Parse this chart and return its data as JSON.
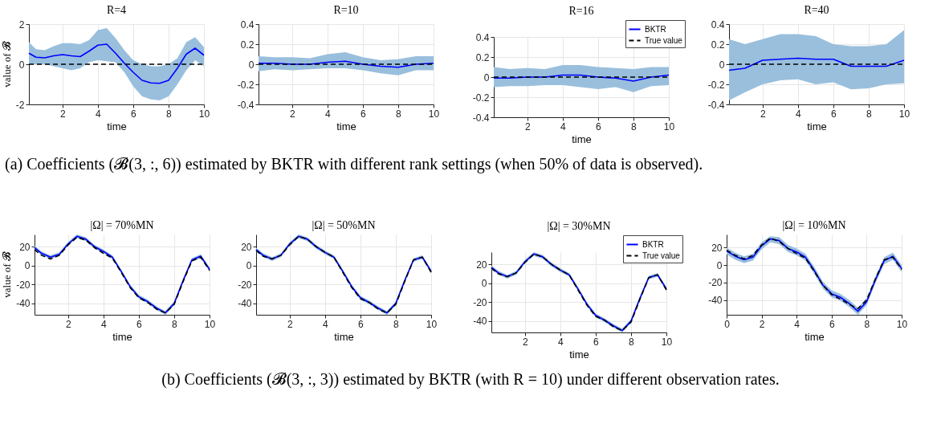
{
  "chart_data": [
    {
      "type": "line",
      "title": "R=4",
      "xlabel": "time",
      "ylabel": "value of 𝓑",
      "xlim": [
        0.1,
        10
      ],
      "xticks": [
        2,
        4,
        6,
        8,
        10
      ],
      "ylim": [
        -2,
        2
      ],
      "yticks": [
        -2,
        0,
        2
      ],
      "grid": true,
      "annotations": [
        "(a) Coefficients (𝓑(3, :, 6)) estimated by BKTR with different rank settings (when 50% of data is observed)."
      ],
      "series": [
        {
          "color": "#0000ff",
          "line_style": "solid",
          "x": [
            0.1,
            0.5,
            1,
            1.5,
            2,
            2.5,
            3,
            3.5,
            4,
            4.5,
            5,
            5.5,
            6,
            6.5,
            7,
            7.5,
            8,
            8.5,
            9,
            9.5,
            10
          ],
          "values": [
            0.55,
            0.35,
            0.32,
            0.42,
            0.48,
            0.42,
            0.38,
            0.65,
            0.95,
            1.0,
            0.55,
            0.05,
            -0.4,
            -0.8,
            -0.93,
            -0.95,
            -0.8,
            -0.2,
            0.5,
            0.8,
            0.45
          ],
          "lower": [
            0.0,
            0.0,
            0.0,
            -0.1,
            -0.2,
            -0.3,
            -0.2,
            0.1,
            0.2,
            0.15,
            0.1,
            -0.4,
            -1.1,
            -1.6,
            -1.75,
            -1.8,
            -1.6,
            -1.0,
            -0.3,
            0.2,
            -0.1
          ],
          "upper": [
            1.1,
            0.75,
            0.7,
            0.9,
            1.05,
            1.05,
            1.0,
            1.2,
            1.7,
            1.8,
            1.3,
            0.7,
            0.2,
            0.0,
            -0.1,
            -0.1,
            0.0,
            0.3,
            1.1,
            1.35,
            0.85
          ]
        },
        {
          "color": "#000000",
          "line_style": "dashed",
          "x": [
            0.1,
            10
          ],
          "values": [
            0,
            0
          ]
        }
      ]
    },
    {
      "type": "line",
      "title": "R=10",
      "xlabel": "time",
      "xlim": [
        0.1,
        10
      ],
      "xticks": [
        2,
        4,
        6,
        8,
        10
      ],
      "ylim": [
        -0.4,
        0.4
      ],
      "yticks": [
        -0.4,
        -0.2,
        0,
        0.2,
        0.4
      ],
      "grid": true,
      "series": [
        {
          "color": "#0000ff",
          "line_style": "solid",
          "x": [
            0.1,
            1,
            2,
            3,
            4,
            5,
            6,
            7,
            8,
            9,
            10
          ],
          "values": [
            0.01,
            0.01,
            0.0,
            0.0,
            0.02,
            0.03,
            0.0,
            -0.02,
            -0.03,
            0.0,
            0.01
          ],
          "lower": [
            -0.07,
            -0.05,
            -0.06,
            -0.05,
            -0.04,
            -0.04,
            -0.06,
            -0.09,
            -0.11,
            -0.06,
            -0.06
          ],
          "upper": [
            0.08,
            0.07,
            0.07,
            0.06,
            0.1,
            0.12,
            0.07,
            0.04,
            0.05,
            0.08,
            0.08
          ]
        },
        {
          "color": "#000000",
          "line_style": "dashed",
          "x": [
            0.1,
            10
          ],
          "values": [
            0,
            0
          ]
        }
      ]
    },
    {
      "type": "line",
      "title": "R=16",
      "xlabel": "time",
      "xlim": [
        0.1,
        10
      ],
      "xticks": [
        2,
        4,
        6,
        8,
        10
      ],
      "ylim": [
        -0.4,
        0.4
      ],
      "yticks": [
        -0.4,
        -0.2,
        0,
        0.2,
        0.4
      ],
      "grid": true,
      "legend": "top right",
      "series": [
        {
          "name": "BKTR",
          "color": "#0000ff",
          "line_style": "solid",
          "x": [
            0.1,
            1,
            2,
            3,
            4,
            5,
            6,
            7,
            8,
            9,
            10
          ],
          "values": [
            -0.01,
            -0.01,
            0.0,
            0.0,
            0.02,
            0.02,
            0.0,
            -0.01,
            -0.04,
            0.0,
            0.02
          ],
          "lower": [
            -0.1,
            -0.09,
            -0.09,
            -0.08,
            -0.08,
            -0.1,
            -0.12,
            -0.1,
            -0.15,
            -0.09,
            -0.08
          ],
          "upper": [
            0.1,
            0.08,
            0.09,
            0.08,
            0.12,
            0.12,
            0.1,
            0.09,
            0.08,
            0.1,
            0.1
          ]
        },
        {
          "name": "True value",
          "color": "#000000",
          "line_style": "dashed",
          "x": [
            0.1,
            10
          ],
          "values": [
            0,
            0
          ]
        }
      ]
    },
    {
      "type": "line",
      "title": "R=40",
      "xlabel": "time",
      "xlim": [
        0.1,
        10
      ],
      "xticks": [
        2,
        4,
        6,
        8,
        10
      ],
      "ylim": [
        -0.4,
        0.4
      ],
      "yticks": [
        -0.4,
        -0.2,
        0,
        0.2,
        0.4
      ],
      "grid": true,
      "series": [
        {
          "color": "#0000ff",
          "line_style": "solid",
          "x": [
            0.1,
            1,
            2,
            3,
            4,
            5,
            6,
            7,
            8,
            9,
            10
          ],
          "values": [
            -0.06,
            -0.04,
            0.04,
            0.05,
            0.06,
            0.05,
            0.05,
            -0.02,
            -0.02,
            -0.02,
            0.04
          ],
          "lower": [
            -0.36,
            -0.28,
            -0.2,
            -0.16,
            -0.15,
            -0.2,
            -0.18,
            -0.25,
            -0.24,
            -0.2,
            -0.19
          ],
          "upper": [
            0.25,
            0.2,
            0.25,
            0.3,
            0.3,
            0.28,
            0.2,
            0.18,
            0.18,
            0.2,
            0.34
          ]
        },
        {
          "color": "#000000",
          "line_style": "dashed",
          "x": [
            0.1,
            10
          ],
          "values": [
            0,
            0
          ]
        }
      ]
    },
    {
      "type": "line",
      "title": "|Ω| = 70%MN",
      "xlabel": "time",
      "ylabel": "value of 𝓑",
      "xlim": [
        0.1,
        10
      ],
      "xticks": [
        2,
        4,
        6,
        8,
        10
      ],
      "ylim": [
        -52,
        33
      ],
      "yticks": [
        -40,
        -20,
        0,
        20
      ],
      "grid": true,
      "annotations": [
        "(b) Coefficients (𝓑(3, :, 3)) estimated by BKTR (with R = 10) under different observation rates."
      ],
      "series": [
        {
          "color": "#0000ff",
          "line_style": "solid",
          "x": [
            0.1,
            0.5,
            1,
            1.5,
            2,
            2.5,
            3,
            3.5,
            4,
            4.5,
            5,
            5.5,
            6,
            6.5,
            7,
            7.5,
            8,
            8.5,
            9,
            9.5,
            10
          ],
          "values": [
            19,
            13,
            9,
            12,
            23,
            31,
            28,
            20,
            15,
            9,
            -6,
            -22,
            -33,
            -38,
            -45,
            -50,
            -40,
            -16,
            6,
            10,
            -4
          ],
          "lower": [
            17,
            11,
            7,
            10,
            21,
            29,
            26,
            18,
            13,
            7,
            -8,
            -24,
            -35,
            -40,
            -47,
            -52,
            -42,
            -18,
            4,
            8,
            -6
          ],
          "upper": [
            21,
            15,
            11,
            14,
            25,
            33,
            30,
            22,
            17,
            11,
            -4,
            -20,
            -31,
            -36,
            -43,
            -48,
            -38,
            -14,
            8,
            12,
            -2
          ]
        },
        {
          "color": "#000000",
          "line_style": "dashed",
          "x": [
            0.1,
            0.5,
            1,
            1.5,
            2,
            2.5,
            3,
            3.5,
            4,
            4.5,
            5,
            5.5,
            6,
            6.5,
            7,
            7.5,
            8,
            8.5,
            9,
            9.5,
            10
          ],
          "values": [
            17,
            11,
            7,
            11,
            22,
            30,
            27,
            19,
            13,
            8,
            -7,
            -23,
            -34,
            -39,
            -46,
            -50,
            -41,
            -17,
            5,
            9,
            -5
          ]
        }
      ]
    },
    {
      "type": "line",
      "title": "|Ω| = 50%MN",
      "xlabel": "time",
      "xlim": [
        0.1,
        10
      ],
      "xticks": [
        2,
        4,
        6,
        8,
        10
      ],
      "ylim": [
        -52,
        33
      ],
      "yticks": [
        -40,
        -20,
        0,
        20
      ],
      "grid": true,
      "series": [
        {
          "color": "#0000ff",
          "line_style": "solid",
          "x": [
            0.1,
            0.5,
            1,
            1.5,
            2,
            2.5,
            3,
            3.5,
            4,
            4.5,
            5,
            5.5,
            6,
            6.5,
            7,
            7.5,
            8,
            8.5,
            9,
            9.5,
            10
          ],
          "values": [
            17,
            11,
            7,
            11,
            23,
            31,
            28,
            20,
            14,
            9,
            -6,
            -22,
            -34,
            -39,
            -45,
            -50,
            -40,
            -16,
            6,
            9,
            -6
          ],
          "lower": [
            15,
            9,
            5,
            9,
            21,
            29,
            26,
            18,
            12,
            7,
            -8,
            -24,
            -36,
            -41,
            -47,
            -52,
            -42,
            -18,
            4,
            7,
            -8
          ],
          "upper": [
            19,
            13,
            9,
            13,
            25,
            33,
            30,
            22,
            16,
            11,
            -4,
            -20,
            -32,
            -37,
            -43,
            -48,
            -38,
            -14,
            8,
            11,
            -4
          ]
        },
        {
          "color": "#000000",
          "line_style": "dashed",
          "x": [
            0.1,
            0.5,
            1,
            1.5,
            2,
            2.5,
            3,
            3.5,
            4,
            4.5,
            5,
            5.5,
            6,
            6.5,
            7,
            7.5,
            8,
            8.5,
            9,
            9.5,
            10
          ],
          "values": [
            16,
            10,
            7,
            11,
            22,
            31,
            28,
            20,
            14,
            9,
            -7,
            -23,
            -35,
            -39,
            -46,
            -50,
            -41,
            -17,
            6,
            9,
            -7
          ]
        }
      ]
    },
    {
      "type": "line",
      "title": "|Ω| = 30%MN",
      "xlabel": "time",
      "xlim": [
        0.1,
        10
      ],
      "xticks": [
        2,
        4,
        6,
        8,
        10
      ],
      "ylim": [
        -52,
        33
      ],
      "yticks": [
        -40,
        -20,
        0,
        20
      ],
      "grid": true,
      "legend": "top right",
      "series": [
        {
          "name": "BKTR",
          "color": "#0000ff",
          "line_style": "solid",
          "x": [
            0.1,
            0.5,
            1,
            1.5,
            2,
            2.5,
            3,
            3.5,
            4,
            4.5,
            5,
            5.5,
            6,
            6.5,
            7,
            7.5,
            8,
            8.5,
            9,
            9.5,
            10
          ],
          "values": [
            17,
            11,
            7,
            11,
            23,
            31,
            28,
            20,
            14,
            9,
            -6,
            -22,
            -34,
            -39,
            -45,
            -50,
            -40,
            -16,
            6,
            9,
            -6
          ],
          "lower": [
            15,
            9,
            5,
            9,
            21,
            29,
            26,
            18,
            12,
            7,
            -8,
            -24,
            -36,
            -41,
            -47,
            -52,
            -42,
            -18,
            4,
            7,
            -8
          ],
          "upper": [
            19,
            13,
            9,
            13,
            25,
            33,
            30,
            22,
            16,
            11,
            -4,
            -20,
            -32,
            -37,
            -43,
            -48,
            -38,
            -14,
            8,
            11,
            -4
          ]
        },
        {
          "name": "True value",
          "color": "#000000",
          "line_style": "dashed",
          "x": [
            0.1,
            0.5,
            1,
            1.5,
            2,
            2.5,
            3,
            3.5,
            4,
            4.5,
            5,
            5.5,
            6,
            6.5,
            7,
            7.5,
            8,
            8.5,
            9,
            9.5,
            10
          ],
          "values": [
            16,
            10,
            7,
            11,
            22,
            31,
            28,
            20,
            14,
            9,
            -7,
            -23,
            -35,
            -39,
            -46,
            -50,
            -41,
            -17,
            6,
            9,
            -7
          ]
        }
      ]
    },
    {
      "type": "line",
      "title": "|Ω| = 10%MN",
      "xlabel": "time",
      "xlim": [
        0,
        10
      ],
      "xticks": [
        0,
        2,
        4,
        6,
        8,
        10
      ],
      "ylim": [
        -57,
        35
      ],
      "yticks": [
        -40,
        -20,
        0,
        20
      ],
      "grid": true,
      "series": [
        {
          "color": "#0000ff",
          "line_style": "solid",
          "x": [
            0,
            0.5,
            1,
            1.5,
            2,
            2.5,
            3,
            3.5,
            4,
            4.5,
            5,
            5.5,
            6,
            6.5,
            7,
            7.5,
            8,
            8.5,
            9,
            9.5,
            10
          ],
          "values": [
            16,
            10,
            6,
            9,
            22,
            30,
            28,
            19,
            15,
            9,
            -6,
            -23,
            -33,
            -37,
            -44,
            -53,
            -42,
            -17,
            5,
            10,
            -4
          ],
          "lower": [
            12,
            6,
            2,
            5,
            18,
            26,
            24,
            15,
            11,
            5,
            -10,
            -27,
            -37,
            -41,
            -48,
            -57,
            -46,
            -21,
            1,
            6,
            -8
          ],
          "upper": [
            20,
            14,
            10,
            13,
            26,
            33,
            32,
            23,
            19,
            13,
            -2,
            -19,
            -29,
            -33,
            -40,
            -49,
            -38,
            -13,
            9,
            14,
            0
          ]
        },
        {
          "color": "#000000",
          "line_style": "dashed",
          "x": [
            0,
            0.5,
            1,
            1.5,
            2,
            2.5,
            3,
            3.5,
            4,
            4.5,
            5,
            5.5,
            6,
            6.5,
            7,
            7.5,
            8,
            8.5,
            9,
            9.5,
            10
          ],
          "values": [
            17,
            11,
            7,
            11,
            23,
            31,
            27,
            19,
            13,
            8,
            -7,
            -23,
            -34,
            -39,
            -45,
            -50,
            -40,
            -16,
            6,
            9,
            -5
          ]
        }
      ]
    }
  ]
}
